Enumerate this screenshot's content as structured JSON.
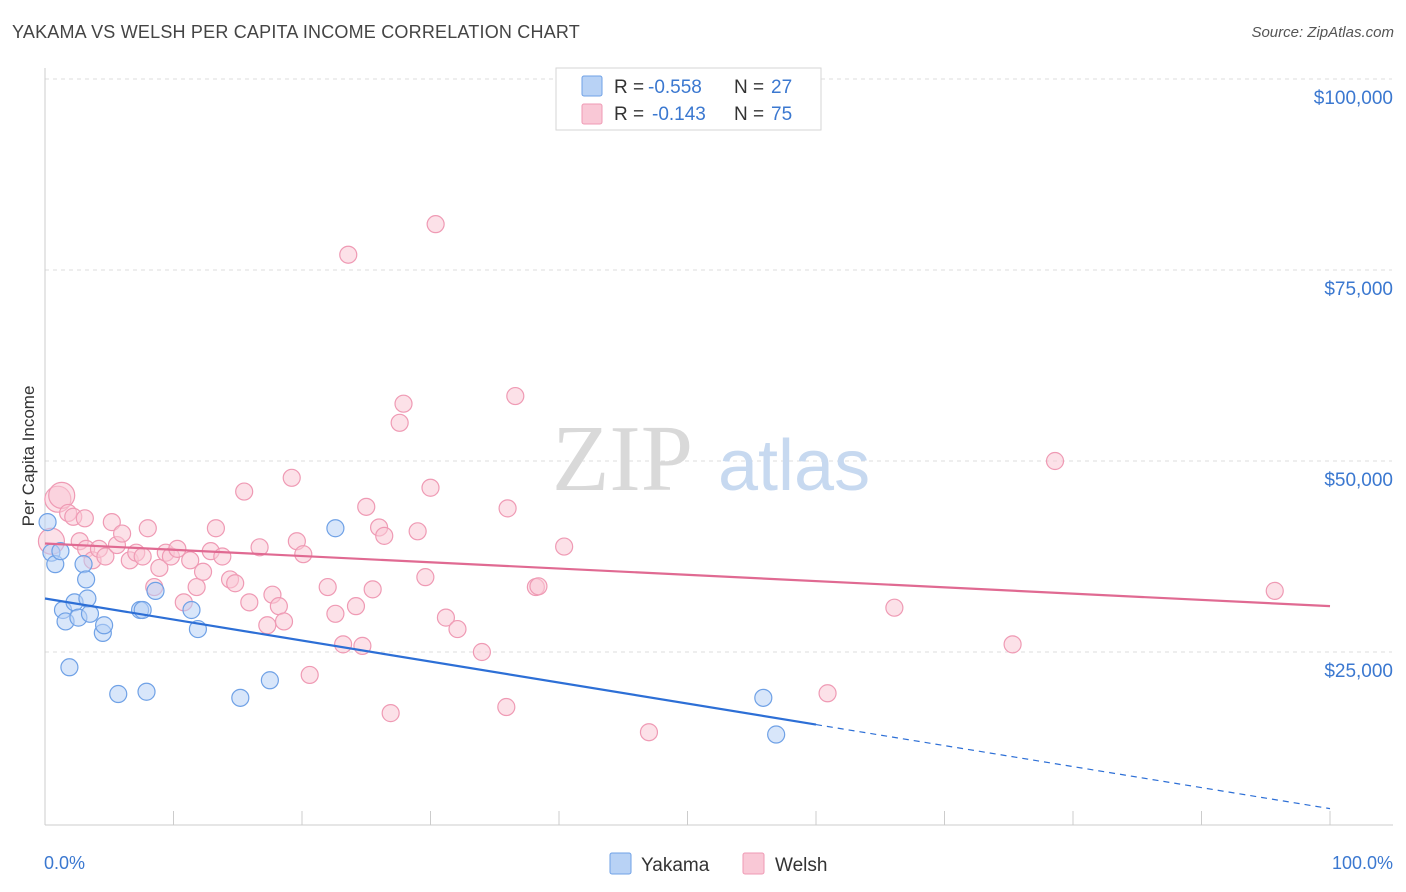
{
  "header": {
    "title": "YAKAMA VS WELSH PER CAPITA INCOME CORRELATION CHART",
    "source": "Source: ZipAtlas.com"
  },
  "watermark": {
    "zip": "ZIP",
    "atlas": "atlas"
  },
  "legend": {
    "r_label": "R =",
    "n_label": "N =",
    "rows": [
      {
        "name": "Yakama",
        "r": "-0.558",
        "n": "27",
        "color": "#6fa1e6",
        "fill": "#b8d2f5"
      },
      {
        "name": "Welsh",
        "r": "-0.143",
        "n": "75",
        "color": "#ef9ab4",
        "fill": "#f9c8d6"
      }
    ]
  },
  "chart_data": {
    "type": "scatter",
    "title": "YAKAMA VS WELSH PER CAPITA INCOME CORRELATION CHART",
    "xlabel": "",
    "ylabel": "Per Capita Income",
    "xlim": [
      0,
      100
    ],
    "ylim": [
      0,
      105000
    ],
    "x_tick_labels": [
      "0.0%",
      "100.0%"
    ],
    "y_ticks": [
      {
        "value": 25000,
        "label": "$25,000"
      },
      {
        "value": 50000,
        "label": "$50,000"
      },
      {
        "value": 75000,
        "label": "$75,000"
      },
      {
        "value": 100000,
        "label": "$100,000"
      }
    ],
    "series": [
      {
        "name": "Yakama",
        "color": "#6fa1e6",
        "fill": "#b8d2f5",
        "trend": {
          "x0": 0,
          "y0": 32000,
          "x1": 60,
          "y1": 15500,
          "dash_to_x": 100,
          "dash_to_y": 4500
        },
        "points": [
          [
            0.2,
            42000
          ],
          [
            0.5,
            38000
          ],
          [
            0.8,
            36500
          ],
          [
            1.2,
            38200
          ],
          [
            1.4,
            30500
          ],
          [
            1.6,
            29000
          ],
          [
            1.9,
            23000
          ],
          [
            2.3,
            31500
          ],
          [
            2.6,
            29500
          ],
          [
            3.0,
            36500
          ],
          [
            3.2,
            34500
          ],
          [
            3.3,
            32000
          ],
          [
            3.5,
            30000
          ],
          [
            4.5,
            27500
          ],
          [
            4.6,
            28500
          ],
          [
            5.7,
            19500
          ],
          [
            7.4,
            30500
          ],
          [
            7.6,
            30500
          ],
          [
            7.9,
            19800
          ],
          [
            8.6,
            33000
          ],
          [
            11.4,
            30500
          ],
          [
            11.9,
            28000
          ],
          [
            15.2,
            19000
          ],
          [
            17.5,
            21300
          ],
          [
            22.6,
            41200
          ],
          [
            55.9,
            19000
          ],
          [
            56.9,
            14200
          ]
        ]
      },
      {
        "name": "Welsh",
        "color": "#ef9ab4",
        "fill": "#f9c8d6",
        "trend": {
          "x0": 0,
          "y0": 39200,
          "x1": 100,
          "y1": 31000
        },
        "points": [
          [
            0.5,
            39500
          ],
          [
            1.0,
            45000
          ],
          [
            1.3,
            45500
          ],
          [
            1.8,
            43200
          ],
          [
            2.2,
            42700
          ],
          [
            2.7,
            39500
          ],
          [
            3.2,
            38500
          ],
          [
            3.7,
            37000
          ],
          [
            4.2,
            38500
          ],
          [
            4.7,
            37500
          ],
          [
            5.2,
            42000
          ],
          [
            5.6,
            39000
          ],
          [
            6.0,
            40500
          ],
          [
            6.6,
            37000
          ],
          [
            7.1,
            38000
          ],
          [
            7.6,
            37500
          ],
          [
            8.0,
            41200
          ],
          [
            8.5,
            33500
          ],
          [
            8.9,
            36000
          ],
          [
            9.4,
            38000
          ],
          [
            9.8,
            37500
          ],
          [
            10.3,
            38500
          ],
          [
            10.8,
            31500
          ],
          [
            11.3,
            37000
          ],
          [
            11.8,
            33500
          ],
          [
            12.3,
            35500
          ],
          [
            12.9,
            38200
          ],
          [
            13.3,
            41200
          ],
          [
            13.8,
            37500
          ],
          [
            14.4,
            34500
          ],
          [
            14.8,
            34000
          ],
          [
            15.5,
            46000
          ],
          [
            15.9,
            31500
          ],
          [
            16.7,
            38700
          ],
          [
            17.3,
            28500
          ],
          [
            17.7,
            32500
          ],
          [
            18.2,
            31000
          ],
          [
            18.6,
            29000
          ],
          [
            19.2,
            47800
          ],
          [
            19.6,
            39500
          ],
          [
            20.1,
            37800
          ],
          [
            20.6,
            22000
          ],
          [
            22.0,
            33500
          ],
          [
            22.6,
            30000
          ],
          [
            23.2,
            26000
          ],
          [
            23.6,
            77000
          ],
          [
            24.2,
            31000
          ],
          [
            24.7,
            25800
          ],
          [
            25.0,
            44000
          ],
          [
            25.5,
            33200
          ],
          [
            26.0,
            41300
          ],
          [
            26.4,
            40200
          ],
          [
            26.9,
            17000
          ],
          [
            27.6,
            55000
          ],
          [
            27.9,
            57500
          ],
          [
            29.0,
            40800
          ],
          [
            29.6,
            34800
          ],
          [
            30.0,
            46500
          ],
          [
            30.4,
            81000
          ],
          [
            31.2,
            29500
          ],
          [
            32.1,
            28000
          ],
          [
            34.0,
            25000
          ],
          [
            35.9,
            17800
          ],
          [
            36.0,
            43800
          ],
          [
            36.6,
            58500
          ],
          [
            38.2,
            33500
          ],
          [
            38.4,
            33600
          ],
          [
            40.4,
            38800
          ],
          [
            47.0,
            14500
          ],
          [
            60.9,
            19600
          ],
          [
            66.1,
            30800
          ],
          [
            75.3,
            26000
          ],
          [
            78.6,
            50000
          ],
          [
            95.7,
            33000
          ],
          [
            3.1,
            42500
          ]
        ]
      }
    ]
  }
}
